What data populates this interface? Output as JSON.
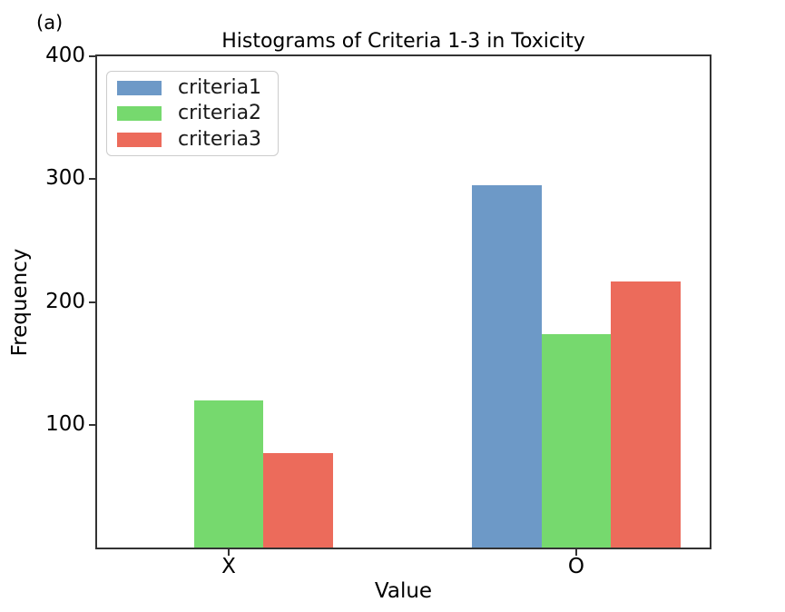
{
  "figure_label": "(a)",
  "chart_data": {
    "type": "bar",
    "title": "Histograms of Criteria 1-3 in Toxicity",
    "xlabel": "Value",
    "ylabel": "Frequency",
    "categories": [
      "X",
      "O"
    ],
    "series": [
      {
        "name": "criteria1",
        "color": "#6d99c7",
        "values": [
          0,
          295
        ]
      },
      {
        "name": "criteria2",
        "color": "#76d96e",
        "values": [
          120,
          174
        ]
      },
      {
        "name": "criteria3",
        "color": "#ec6b5b",
        "values": [
          77,
          217
        ]
      }
    ],
    "ylim": [
      0,
      400
    ],
    "yticks": [
      100,
      200,
      300,
      400
    ],
    "bar_width": 0.2,
    "legend_position": "upper left",
    "grid": false,
    "axis_color": "#333333",
    "legend_border_color": "#cccccc"
  }
}
